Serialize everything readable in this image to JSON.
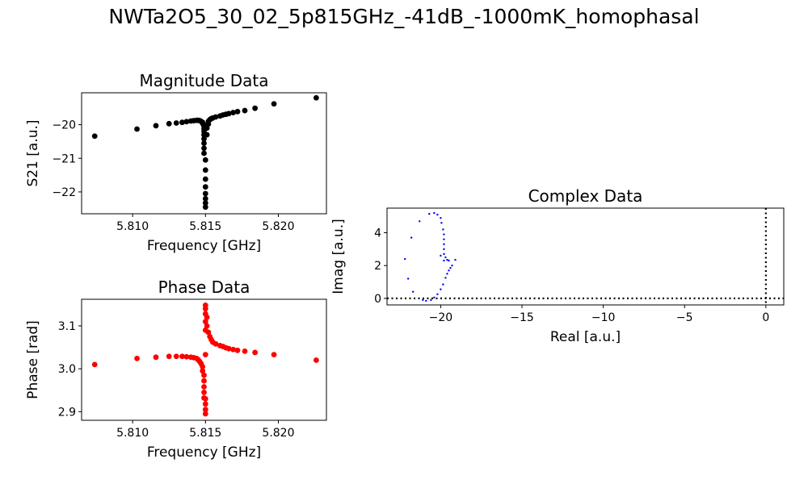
{
  "figure": {
    "title": "NWTa2O5_30_02_5p815GHz_-41dB_-1000mK_homophasal"
  },
  "chart_data": [
    {
      "type": "scatter",
      "title": "Magnitude Data",
      "xlabel": "Frequency [GHz]",
      "ylabel": "S21 [a.u.]",
      "xlim": [
        5.8065,
        5.8233
      ],
      "ylim": [
        -22.65,
        -19.05
      ],
      "xticks": [
        5.81,
        5.815,
        5.82
      ],
      "xtick_labels": [
        "5.810",
        "5.815",
        "5.820"
      ],
      "yticks": [
        -22,
        -21,
        -20
      ],
      "ytick_labels": [
        "−22",
        "−21",
        "−20"
      ],
      "color": "#000000",
      "points": [
        [
          5.8074,
          -20.34
        ],
        [
          5.8103,
          -20.13
        ],
        [
          5.8116,
          -20.03
        ],
        [
          5.8125,
          -19.97
        ],
        [
          5.813,
          -19.95
        ],
        [
          5.8134,
          -19.93
        ],
        [
          5.8137,
          -19.91
        ],
        [
          5.814,
          -19.89
        ],
        [
          5.8142,
          -19.88
        ],
        [
          5.8144,
          -19.87
        ],
        [
          5.8145,
          -19.87
        ],
        [
          5.8146,
          -19.88
        ],
        [
          5.8147,
          -19.9
        ],
        [
          5.8148,
          -19.93
        ],
        [
          5.8148,
          -19.96
        ],
        [
          5.8149,
          -20.0
        ],
        [
          5.8149,
          -20.05
        ],
        [
          5.8149,
          -20.12
        ],
        [
          5.8149,
          -20.2
        ],
        [
          5.8149,
          -20.3
        ],
        [
          5.8149,
          -20.42
        ],
        [
          5.8149,
          -20.55
        ],
        [
          5.8149,
          -20.7
        ],
        [
          5.8149,
          -20.85
        ],
        [
          5.815,
          -21.05
        ],
        [
          5.815,
          -21.35
        ],
        [
          5.815,
          -21.62
        ],
        [
          5.815,
          -21.85
        ],
        [
          5.815,
          -22.05
        ],
        [
          5.815,
          -22.2
        ],
        [
          5.815,
          -22.33
        ],
        [
          5.815,
          -22.45
        ],
        [
          5.8151,
          -20.3
        ],
        [
          5.8151,
          -20.1
        ],
        [
          5.8152,
          -19.98
        ],
        [
          5.8152,
          -19.9
        ],
        [
          5.8153,
          -19.85
        ],
        [
          5.8154,
          -19.82
        ],
        [
          5.8155,
          -19.8
        ],
        [
          5.8157,
          -19.77
        ],
        [
          5.816,
          -19.74
        ],
        [
          5.8162,
          -19.71
        ],
        [
          5.8164,
          -19.69
        ],
        [
          5.8166,
          -19.67
        ],
        [
          5.8169,
          -19.64
        ],
        [
          5.8172,
          -19.61
        ],
        [
          5.8177,
          -19.58
        ],
        [
          5.8184,
          -19.51
        ],
        [
          5.8197,
          -19.38
        ],
        [
          5.8226,
          -19.2
        ]
      ]
    },
    {
      "type": "scatter",
      "title": "Phase Data",
      "xlabel": "Frequency [GHz]",
      "ylabel": "Phase [rad]",
      "xlim": [
        5.8065,
        5.8233
      ],
      "ylim": [
        2.88,
        3.162
      ],
      "xticks": [
        5.81,
        5.815,
        5.82
      ],
      "xtick_labels": [
        "5.810",
        "5.815",
        "5.820"
      ],
      "yticks": [
        2.9,
        3.0,
        3.1
      ],
      "ytick_labels": [
        "2.9",
        "3.0",
        "3.1"
      ],
      "color": "#ff0000",
      "points": [
        [
          5.8074,
          3.01
        ],
        [
          5.8103,
          3.024
        ],
        [
          5.8116,
          3.027
        ],
        [
          5.8125,
          3.029
        ],
        [
          5.813,
          3.029
        ],
        [
          5.8134,
          3.029
        ],
        [
          5.8137,
          3.028
        ],
        [
          5.814,
          3.027
        ],
        [
          5.8142,
          3.026
        ],
        [
          5.8144,
          3.024
        ],
        [
          5.8145,
          3.021
        ],
        [
          5.8146,
          3.017
        ],
        [
          5.8147,
          3.012
        ],
        [
          5.8148,
          3.005
        ],
        [
          5.8148,
          2.995
        ],
        [
          5.8149,
          2.985
        ],
        [
          5.8149,
          2.972
        ],
        [
          5.8149,
          2.958
        ],
        [
          5.8149,
          2.945
        ],
        [
          5.8149,
          2.932
        ],
        [
          5.815,
          2.918
        ],
        [
          5.815,
          2.905
        ],
        [
          5.815,
          2.895
        ],
        [
          5.815,
          2.93
        ],
        [
          5.815,
          3.033
        ],
        [
          5.815,
          3.09
        ],
        [
          5.815,
          3.11
        ],
        [
          5.815,
          3.128
        ],
        [
          5.815,
          3.14
        ],
        [
          5.815,
          3.148
        ],
        [
          5.8151,
          3.12
        ],
        [
          5.8151,
          3.1
        ],
        [
          5.8152,
          3.085
        ],
        [
          5.8153,
          3.075
        ],
        [
          5.8154,
          3.068
        ],
        [
          5.8155,
          3.062
        ],
        [
          5.8157,
          3.058
        ],
        [
          5.816,
          3.054
        ],
        [
          5.8162,
          3.052
        ],
        [
          5.8164,
          3.049
        ],
        [
          5.8166,
          3.047
        ],
        [
          5.8169,
          3.045
        ],
        [
          5.8172,
          3.043
        ],
        [
          5.8177,
          3.041
        ],
        [
          5.8184,
          3.038
        ],
        [
          5.8197,
          3.033
        ],
        [
          5.8226,
          3.02
        ]
      ]
    },
    {
      "type": "scatter",
      "title": "Complex Data",
      "xlabel": "Real [a.u.]",
      "ylabel": "Imag [a.u.]",
      "xlim": [
        -23.3,
        1.1
      ],
      "ylim": [
        -0.4,
        5.5
      ],
      "xticks": [
        -20,
        -15,
        -10,
        -5,
        0
      ],
      "xtick_labels": [
        "−20",
        "−15",
        "−10",
        "−5",
        "0"
      ],
      "yticks": [
        0,
        2,
        4
      ],
      "ytick_labels": [
        "0",
        "2",
        "4"
      ],
      "color": "#0000ff",
      "reference_lines": {
        "x": 0,
        "y": 0,
        "style": "dotted",
        "color": "#000000"
      },
      "points": [
        [
          -22.2,
          2.4
        ],
        [
          -22.0,
          1.2
        ],
        [
          -21.8,
          3.7
        ],
        [
          -21.7,
          0.4
        ],
        [
          -21.3,
          4.7
        ],
        [
          -21.1,
          -0.1
        ],
        [
          -20.9,
          -0.15
        ],
        [
          -20.7,
          5.15
        ],
        [
          -20.6,
          -0.1
        ],
        [
          -20.4,
          5.2
        ],
        [
          -20.4,
          0.05
        ],
        [
          -20.2,
          5.1
        ],
        [
          -20.2,
          0.25
        ],
        [
          -20.0,
          4.9
        ],
        [
          -20.0,
          0.55
        ],
        [
          -19.95,
          4.6
        ],
        [
          -19.85,
          0.85
        ],
        [
          -19.85,
          4.2
        ],
        [
          -19.8,
          3.9
        ],
        [
          -19.8,
          3.6
        ],
        [
          -19.8,
          3.3
        ],
        [
          -19.8,
          3.0
        ],
        [
          -19.8,
          2.7
        ],
        [
          -19.7,
          1.25
        ],
        [
          -19.7,
          2.5
        ],
        [
          -19.6,
          1.5
        ],
        [
          -19.6,
          2.35
        ],
        [
          -19.5,
          1.7
        ],
        [
          -19.5,
          2.3
        ],
        [
          -19.4,
          1.85
        ],
        [
          -19.3,
          2.0
        ],
        [
          -19.8,
          2.3
        ],
        [
          -20.0,
          2.6
        ],
        [
          -19.1,
          2.35
        ]
      ]
    }
  ]
}
